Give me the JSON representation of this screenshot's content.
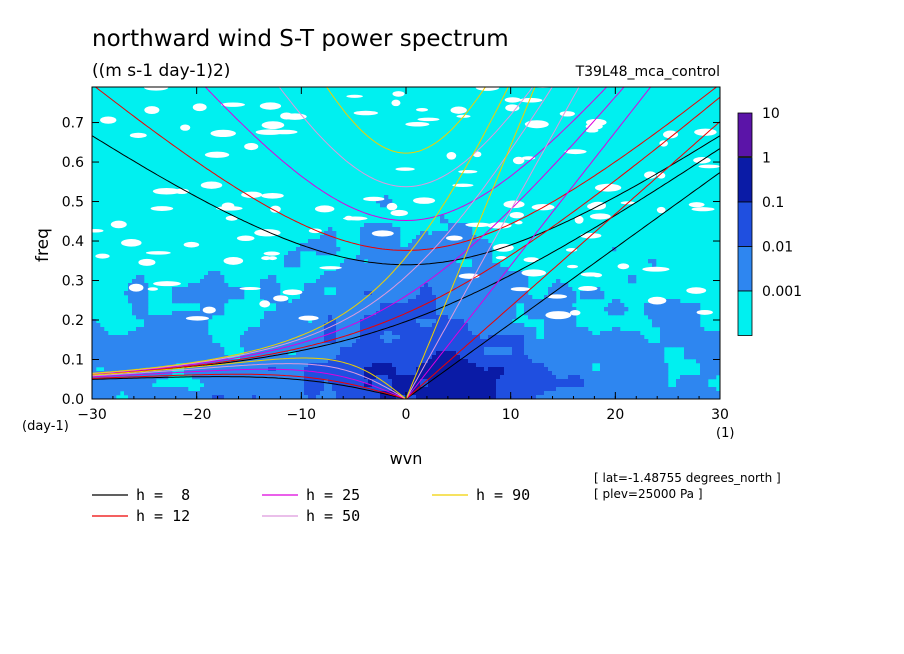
{
  "chart_data": {
    "type": "heatmap",
    "title": "northward wind S-T power spectrum",
    "subtitle": "((m s-1 day-1)2)",
    "experiment": "T39L48_mca_control",
    "xlabel": "wvn",
    "ylabel": "freq",
    "x_unit": "(1)",
    "y_unit": "(day-1)",
    "xlim": [
      -30,
      30
    ],
    "ylim": [
      0,
      0.79
    ],
    "xticks": [
      -30,
      -20,
      -10,
      0,
      10,
      20,
      30
    ],
    "yticks": [
      0.0,
      0.1,
      0.2,
      0.3,
      0.4,
      0.5,
      0.6,
      0.7
    ],
    "colorbar": {
      "levels": [
        "10",
        "1",
        "0.1",
        "0.01",
        "0.001"
      ],
      "colors": [
        "#5b14a8",
        "#0a1ba6",
        "#1f4fe0",
        "#2e86f0",
        "#00f0f0"
      ]
    },
    "dispersion_curves": [
      {
        "name": "h =  8",
        "h": 8,
        "color": "#000000"
      },
      {
        "name": "h = 12",
        "h": 12,
        "color": "#ee0000"
      },
      {
        "name": "h = 25",
        "h": 25,
        "color": "#dd00dd"
      },
      {
        "name": "h = 50",
        "h": 50,
        "color": "#dd99dd"
      },
      {
        "name": "h = 90",
        "h": 90,
        "color": "#f0d000"
      }
    ],
    "annotations": [
      "[ lat=-1.48755 degrees_north ]",
      "[ plev=25000 Pa ]"
    ]
  }
}
